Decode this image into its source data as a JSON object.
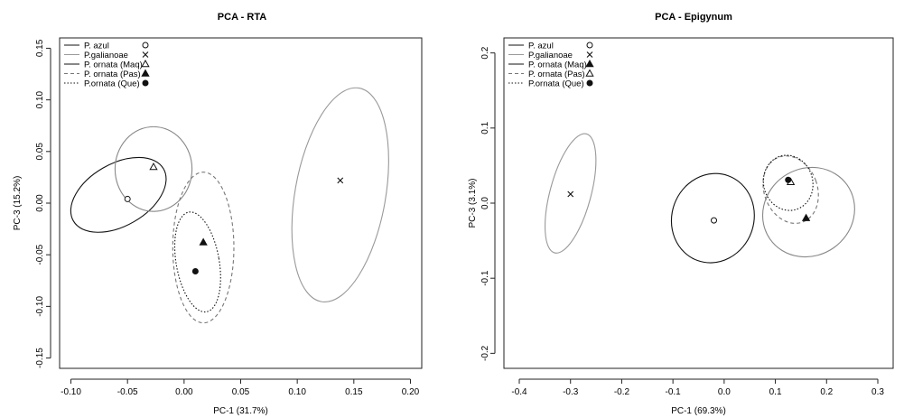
{
  "chart_data": [
    {
      "type": "scatter",
      "title": "PCA - RTA",
      "xlabel": "PC-1 (31.7%)",
      "ylabel": "PC-3 (15.2%)",
      "xlim": [
        -0.11,
        0.21
      ],
      "ylim": [
        -0.16,
        0.16
      ],
      "xticks": [
        -0.1,
        -0.05,
        0.0,
        0.05,
        0.1,
        0.15,
        0.2
      ],
      "xtick_labels": [
        "-0.10",
        "-0.05",
        "0.00",
        "0.05",
        "0.10",
        "0.15",
        "0.20"
      ],
      "yticks": [
        -0.15,
        -0.1,
        -0.05,
        0.0,
        0.05,
        0.1,
        0.15
      ],
      "ytick_labels": [
        "-0.15",
        "-0.10",
        "-0.05",
        "0.00",
        "0.05",
        "0.10",
        "0.15"
      ],
      "legend_position": "top-left",
      "legend": [
        {
          "label": "P. azul",
          "line": "solid",
          "color": "#111111",
          "marker": "open-circle"
        },
        {
          "label": "P.galianoae",
          "line": "solid",
          "color": "#999999",
          "marker": "x"
        },
        {
          "label": "P. ornata (Maq)",
          "line": "solid",
          "color": "#111111",
          "marker": "open-triangle"
        },
        {
          "label": "P. ornata (Pas)",
          "line": "dashed",
          "color": "#777777",
          "marker": "filled-triangle"
        },
        {
          "label": "P.ornata (Que)",
          "line": "dotted",
          "color": "#111111",
          "marker": "filled-circle"
        }
      ],
      "series": [
        {
          "name": "P. azul",
          "point": [
            -0.05,
            0.004
          ],
          "marker": "open-circle",
          "ellipse": {
            "cx": -0.058,
            "cy": 0.008,
            "rx": 0.046,
            "ry": 0.03,
            "angle_deg": -30,
            "line": "solid",
            "color": "#111111"
          }
        },
        {
          "name": "P.galianoae",
          "point": [
            0.138,
            0.022
          ],
          "marker": "x",
          "ellipse": {
            "cx": 0.138,
            "cy": 0.008,
            "rx": 0.04,
            "ry": 0.105,
            "angle_deg": 10,
            "line": "solid",
            "color": "#999999"
          }
        },
        {
          "name": "P. ornata (Maq)",
          "point": [
            -0.027,
            0.035
          ],
          "marker": "open-triangle",
          "ellipse": {
            "cx": -0.027,
            "cy": 0.033,
            "rx": 0.034,
            "ry": 0.041,
            "angle_deg": 0,
            "line": "solid",
            "color": "#888888"
          }
        },
        {
          "name": "P. ornata (Pas)",
          "point": [
            0.017,
            -0.038
          ],
          "marker": "filled-triangle",
          "ellipse": {
            "cx": 0.017,
            "cy": -0.043,
            "rx": 0.027,
            "ry": 0.073,
            "angle_deg": 0,
            "line": "dashed",
            "color": "#777777"
          }
        },
        {
          "name": "P.ornata (Que)",
          "point": [
            0.01,
            -0.066
          ],
          "marker": "filled-circle",
          "ellipse": {
            "cx": 0.012,
            "cy": -0.057,
            "rx": 0.019,
            "ry": 0.049,
            "angle_deg": -10,
            "line": "dotted",
            "color": "#111111"
          }
        }
      ]
    },
    {
      "type": "scatter",
      "title": "PCA - Epigynum",
      "xlabel": "PC-1 (69.3%)",
      "ylabel": "PC-3 (3.1%)",
      "xlim": [
        -0.43,
        0.33
      ],
      "ylim": [
        -0.22,
        0.22
      ],
      "xticks": [
        -0.4,
        -0.3,
        -0.2,
        -0.1,
        0.0,
        0.1,
        0.2,
        0.3
      ],
      "xtick_labels": [
        "-0.4",
        "-0.3",
        "-0.2",
        "-0.1",
        "0.0",
        "0.1",
        "0.2",
        "0.3"
      ],
      "yticks": [
        -0.2,
        -0.1,
        0.0,
        0.1,
        0.2
      ],
      "ytick_labels": [
        "-0.2",
        "-0.1",
        "0.0",
        "0.1",
        "0.2"
      ],
      "legend_position": "top-left",
      "legend": [
        {
          "label": "P. azul",
          "line": "solid",
          "color": "#111111",
          "marker": "open-circle"
        },
        {
          "label": "P.galianoae",
          "line": "solid",
          "color": "#999999",
          "marker": "x"
        },
        {
          "label": "P. ornata (Maq)",
          "line": "solid",
          "color": "#111111",
          "marker": "filled-triangle"
        },
        {
          "label": "P. ornata (Pas)",
          "line": "dashed",
          "color": "#777777",
          "marker": "open-triangle"
        },
        {
          "label": "P.ornata (Que)",
          "line": "dotted",
          "color": "#111111",
          "marker": "filled-circle"
        }
      ],
      "series": [
        {
          "name": "P. azul",
          "point": [
            -0.02,
            -0.023
          ],
          "marker": "open-circle",
          "ellipse": {
            "cx": -0.022,
            "cy": -0.02,
            "rx": 0.08,
            "ry": 0.06,
            "angle_deg": 20,
            "line": "solid",
            "color": "#111111"
          }
        },
        {
          "name": "P.galianoae",
          "point": [
            -0.3,
            0.012
          ],
          "marker": "x",
          "ellipse": {
            "cx": -0.3,
            "cy": 0.013,
            "rx": 0.04,
            "ry": 0.082,
            "angle_deg": 15,
            "line": "solid",
            "color": "#999999"
          }
        },
        {
          "name": "P. ornata (Maq)",
          "point": [
            0.16,
            -0.02
          ],
          "marker": "filled-triangle",
          "ellipse": {
            "cx": 0.165,
            "cy": -0.012,
            "rx": 0.092,
            "ry": 0.058,
            "angle_deg": -35,
            "line": "solid",
            "color": "#888888"
          }
        },
        {
          "name": "P. ornata (Pas)",
          "point": [
            0.13,
            0.028
          ],
          "marker": "open-triangle",
          "ellipse": {
            "cx": 0.13,
            "cy": 0.018,
            "rx": 0.052,
            "ry": 0.046,
            "angle_deg": -20,
            "line": "dashed",
            "color": "#777777"
          }
        },
        {
          "name": "P.ornata (Que)",
          "point": [
            0.125,
            0.031
          ],
          "marker": "filled-circle",
          "ellipse": {
            "cx": 0.125,
            "cy": 0.027,
            "rx": 0.048,
            "ry": 0.037,
            "angle_deg": -15,
            "line": "dotted",
            "color": "#111111"
          }
        }
      ]
    }
  ]
}
